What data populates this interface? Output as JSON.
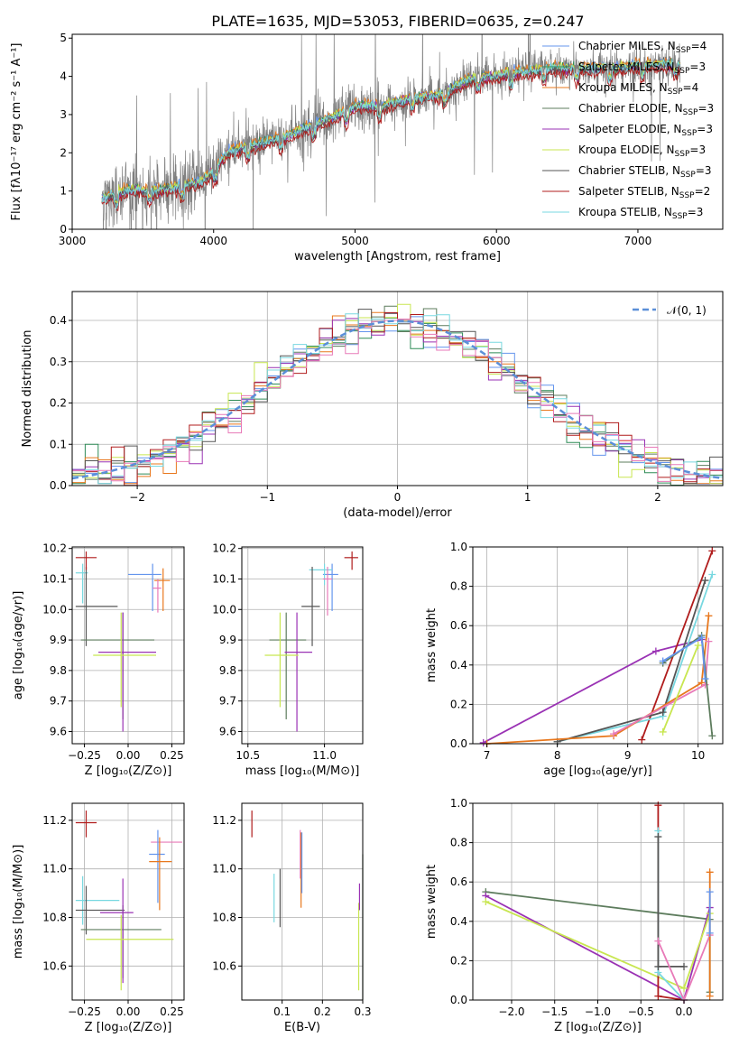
{
  "figure": {
    "title": "PLATE=1635, MJD=53053, FIBERID=0635, z=0.247"
  },
  "colors": {
    "chabrier_miles": "#6495ed",
    "salpeter_miles": "#2e8b57",
    "kroupa_miles": "#e8781e",
    "chabrier_elodie": "#5d7c5d",
    "salpeter_elodie": "#9a32b4",
    "kroupa_elodie": "#c8e650",
    "chabrier_stelib": "#555555",
    "salpeter_stelib": "#b01c1c",
    "kroupa_stelib": "#78d8e0",
    "pink": "#e87ab8",
    "data": "#7f7f7f",
    "normal": "#5b8fd8"
  },
  "chart_data": [
    {
      "id": "spectrum",
      "type": "line",
      "xlabel": "wavelength [Angstrom, rest frame]",
      "ylabel": "Flux [fλ10⁻¹⁷ erg cm⁻² s⁻¹ A⁻¹]",
      "xlim": [
        3000,
        7600
      ],
      "ylim": [
        0,
        5.1
      ],
      "xticks": [
        "3000",
        "4000",
        "5000",
        "6000",
        "7000"
      ],
      "yticks": [
        "0",
        "1",
        "2",
        "3",
        "4",
        "5"
      ],
      "grid": false,
      "legend_position": "top-right",
      "continuum": {
        "x": [
          3210,
          3400,
          3600,
          3750,
          3900,
          4000,
          4100,
          4300,
          4500,
          4700,
          4900,
          5000,
          5200,
          5400,
          5600,
          5800,
          6000,
          6200,
          6400,
          6600,
          6800,
          7000,
          7200,
          7300
        ],
        "y": [
          0.8,
          1.0,
          1.0,
          1.1,
          1.2,
          1.5,
          2.0,
          2.2,
          2.4,
          2.7,
          3.0,
          3.2,
          3.2,
          3.4,
          3.5,
          3.9,
          4.0,
          4.1,
          4.2,
          4.2,
          4.2,
          4.25,
          4.3,
          4.3
        ]
      },
      "series": [
        {
          "name": "Chabrier MILES, N$_{SSP}$=4",
          "color_key": "chabrier_miles",
          "offset": 0.06
        },
        {
          "name": "Salpeter MILES, N$_{SSP}$=3",
          "color_key": "salpeter_miles",
          "offset": 0.04
        },
        {
          "name": "Kroupa MILES, N$_{SSP}$=4",
          "color_key": "kroupa_miles",
          "offset": 0.08
        },
        {
          "name": "Chabrier ELODIE, N$_{SSP}$=3",
          "color_key": "chabrier_elodie",
          "offset": 0.02
        },
        {
          "name": "Salpeter ELODIE, N$_{SSP}$=3",
          "color_key": "salpeter_elodie",
          "offset": 0.0
        },
        {
          "name": "Kroupa ELODIE, N$_{SSP}$=3",
          "color_key": "kroupa_elodie",
          "offset": 0.05
        },
        {
          "name": "Chabrier STELIB, N$_{SSP}$=3",
          "color_key": "chabrier_stelib",
          "offset": -0.02
        },
        {
          "name": "Salpeter STELIB, N$_{SSP}$=2",
          "color_key": "salpeter_stelib",
          "offset": -0.12
        },
        {
          "name": "Kroupa STELIB, N$_{SSP}$=3",
          "color_key": "kroupa_stelib",
          "offset": 0.03
        }
      ]
    },
    {
      "id": "residuals",
      "type": "histogram",
      "xlabel": "(data-model)/error",
      "ylabel": "Normed distribution",
      "xlim": [
        -2.5,
        2.5
      ],
      "ylim": [
        0,
        0.47
      ],
      "xticks": [
        "−2",
        "−1",
        "0",
        "1",
        "2"
      ],
      "yticks": [
        "0.0",
        "0.1",
        "0.2",
        "0.3",
        "0.4"
      ],
      "grid": true,
      "legend_position": "top-right",
      "legend_label": "𝒩(0, 1)",
      "bin_width": 0.1
    },
    {
      "id": "age_vs_z",
      "type": "errorbar",
      "xlabel": "Z [log₁₀(Z/Z⊙)]",
      "ylabel": "age  [log₁₀(age/yr)]",
      "xlim": [
        -0.32,
        0.32
      ],
      "ylim": [
        9.56,
        10.205
      ],
      "xticks": [
        "−0.25",
        "0.00",
        "0.25"
      ],
      "yticks": [
        "9.6",
        "9.7",
        "9.8",
        "9.9",
        "10.0",
        "10.1",
        "10.2"
      ],
      "grid": true,
      "points": [
        {
          "x": 0.14,
          "xerr": [
            0.14,
            0.05
          ],
          "y": 10.115,
          "yerr": [
            0.12,
            0.035
          ],
          "color_key": "chabrier_miles"
        },
        {
          "x": 0.2,
          "xerr": [
            0.05,
            0.04
          ],
          "y": 10.095,
          "yerr": [
            0.1,
            0.04
          ],
          "color_key": "kroupa_miles"
        },
        {
          "x": 0.17,
          "xerr": [
            0.03,
            0.02
          ],
          "y": 10.07,
          "yerr": [
            0.08,
            0.03
          ],
          "color_key": "pink"
        },
        {
          "x": -0.26,
          "xerr": [
            0.04,
            0.03
          ],
          "y": 10.12,
          "yerr": [
            0.1,
            0.03
          ],
          "color_key": "kroupa_stelib"
        },
        {
          "x": -0.24,
          "xerr": [
            0.06,
            0.18
          ],
          "y": 10.01,
          "yerr": [
            0.13,
            0.13
          ],
          "color_key": "chabrier_stelib"
        },
        {
          "x": -0.24,
          "xerr": [
            0.06,
            0.06
          ],
          "y": 10.17,
          "yerr": [
            0.04,
            0.02
          ],
          "color_key": "salpeter_stelib"
        },
        {
          "x": -0.03,
          "xerr": [
            0.24,
            0.18
          ],
          "y": 9.9,
          "yerr": [
            0.26,
            0.09
          ],
          "color_key": "chabrier_elodie"
        },
        {
          "x": -0.03,
          "xerr": [
            0.14,
            0.19
          ],
          "y": 9.86,
          "yerr": [
            0.26,
            0.13
          ],
          "color_key": "salpeter_elodie"
        },
        {
          "x": -0.04,
          "xerr": [
            0.16,
            0.2
          ],
          "y": 9.85,
          "yerr": [
            0.17,
            0.14
          ],
          "color_key": "kroupa_elodie"
        }
      ]
    },
    {
      "id": "age_vs_mass",
      "type": "errorbar",
      "xlabel": "mass [log₁₀(M/M⊙)]",
      "ylabel": "",
      "xlim": [
        10.46,
        11.25
      ],
      "ylim": [
        9.56,
        10.205
      ],
      "xticks": [
        "10.5",
        "11.0"
      ],
      "yticks": [
        "9.6",
        "9.7",
        "9.8",
        "9.9",
        "10.0",
        "10.1",
        "10.2"
      ],
      "grid": true,
      "points": [
        {
          "x": 11.05,
          "xerr": [
            0.06,
            0.04
          ],
          "y": 10.115,
          "yerr": [
            0.12,
            0.035
          ],
          "color_key": "chabrier_miles"
        },
        {
          "x": 11.0,
          "xerr": [
            0.1,
            0.05
          ],
          "y": 10.13,
          "yerr": [
            0.05,
            0.02
          ],
          "color_key": "kroupa_stelib"
        },
        {
          "x": 10.92,
          "xerr": [
            0.07,
            0.05
          ],
          "y": 10.01,
          "yerr": [
            0.13,
            0.13
          ],
          "color_key": "chabrier_stelib"
        },
        {
          "x": 11.18,
          "xerr": [
            0.05,
            0.04
          ],
          "y": 10.17,
          "yerr": [
            0.04,
            0.02
          ],
          "color_key": "salpeter_stelib"
        },
        {
          "x": 11.02,
          "xerr": [
            0.03,
            0.03
          ],
          "y": 10.1,
          "yerr": [
            0.12,
            0.04
          ],
          "color_key": "pink"
        },
        {
          "x": 10.75,
          "xerr": [
            0.11,
            0.13
          ],
          "y": 9.9,
          "yerr": [
            0.26,
            0.09
          ],
          "color_key": "chabrier_elodie"
        },
        {
          "x": 10.82,
          "xerr": [
            0.08,
            0.1
          ],
          "y": 9.86,
          "yerr": [
            0.26,
            0.13
          ],
          "color_key": "salpeter_elodie"
        },
        {
          "x": 10.71,
          "xerr": [
            0.1,
            0.12
          ],
          "y": 9.85,
          "yerr": [
            0.17,
            0.14
          ],
          "color_key": "kroupa_elodie"
        }
      ]
    },
    {
      "id": "weight_vs_age",
      "type": "line",
      "xlabel": "age  [log₁₀(age/yr)]",
      "ylabel": "mass weight",
      "xlim": [
        6.8,
        10.35
      ],
      "ylim": [
        0,
        1.0
      ],
      "xticks": [
        "7",
        "8",
        "9",
        "10"
      ],
      "yticks": [
        "0.0",
        "0.2",
        "0.4",
        "0.6",
        "0.8",
        "1.0"
      ],
      "grid": true,
      "series": [
        {
          "color_key": "salpeter_elodie",
          "x": [
            6.95,
            9.4,
            10.05
          ],
          "y": [
            0.005,
            0.47,
            0.53
          ]
        },
        {
          "color_key": "salpeter_stelib",
          "x": [
            9.2,
            10.2
          ],
          "y": [
            0.02,
            0.98
          ]
        },
        {
          "color_key": "kroupa_stelib",
          "x": [
            8.0,
            9.5,
            10.2
          ],
          "y": [
            0.01,
            0.14,
            0.86
          ]
        },
        {
          "color_key": "chabrier_stelib",
          "x": [
            8.0,
            9.5,
            10.1
          ],
          "y": [
            0.01,
            0.16,
            0.83
          ]
        },
        {
          "color_key": "kroupa_miles",
          "x": [
            7.0,
            8.8,
            10.05,
            10.15
          ],
          "y": [
            0.0,
            0.04,
            0.31,
            0.65
          ]
        },
        {
          "color_key": "pink",
          "x": [
            8.8,
            10.1,
            10.15
          ],
          "y": [
            0.05,
            0.3,
            0.52
          ]
        },
        {
          "color_key": "kroupa_elodie",
          "x": [
            9.5,
            10.0
          ],
          "y": [
            0.06,
            0.5
          ]
        },
        {
          "color_key": "chabrier_elodie",
          "x": [
            9.5,
            10.05,
            10.2
          ],
          "y": [
            0.41,
            0.55,
            0.04
          ]
        },
        {
          "color_key": "chabrier_miles",
          "x": [
            9.5,
            10.05,
            10.1
          ],
          "y": [
            0.42,
            0.54,
            0.33
          ]
        }
      ]
    },
    {
      "id": "mass_vs_z",
      "type": "errorbar",
      "xlabel": "Z [log₁₀(Z/Z⊙)]",
      "ylabel": "mass [log₁₀(M/M⊙)]",
      "xlim": [
        -0.32,
        0.32
      ],
      "ylim": [
        10.46,
        11.27
      ],
      "xticks": [
        "−0.25",
        "0.00",
        "0.25"
      ],
      "yticks": [
        "10.6",
        "10.8",
        "11.0",
        "11.2"
      ],
      "grid": true,
      "points": [
        {
          "x": 0.17,
          "xerr": [
            0.04,
            0.14
          ],
          "y": 11.11,
          "yerr": [
            0.0,
            0.0
          ],
          "color_key": "pink"
        },
        {
          "x": -0.24,
          "xerr": [
            0.06,
            0.06
          ],
          "y": 11.19,
          "yerr": [
            0.06,
            0.05
          ],
          "color_key": "salpeter_stelib"
        },
        {
          "x": 0.17,
          "xerr": [
            0.05,
            0.04
          ],
          "y": 11.06,
          "yerr": [
            0.2,
            0.1
          ],
          "color_key": "chabrier_miles"
        },
        {
          "x": 0.18,
          "xerr": [
            0.06,
            0.07
          ],
          "y": 11.03,
          "yerr": [
            0.2,
            0.1
          ],
          "color_key": "kroupa_miles"
        },
        {
          "x": -0.26,
          "xerr": [
            0.04,
            0.21
          ],
          "y": 10.87,
          "yerr": [
            0.1,
            0.1
          ],
          "color_key": "kroupa_stelib"
        },
        {
          "x": -0.24,
          "xerr": [
            0.06,
            0.22
          ],
          "y": 10.83,
          "yerr": [
            0.1,
            0.1
          ],
          "color_key": "chabrier_stelib"
        },
        {
          "x": -0.03,
          "xerr": [
            0.24,
            0.22
          ],
          "y": 10.75,
          "yerr": [
            0.2,
            0.1
          ],
          "color_key": "chabrier_elodie"
        },
        {
          "x": -0.03,
          "xerr": [
            0.13,
            0.06
          ],
          "y": 10.82,
          "yerr": [
            0.29,
            0.14
          ],
          "color_key": "salpeter_elodie"
        },
        {
          "x": -0.04,
          "xerr": [
            0.2,
            0.3
          ],
          "y": 10.71,
          "yerr": [
            0.21,
            0.1
          ],
          "color_key": "kroupa_elodie"
        }
      ]
    },
    {
      "id": "mass_vs_ebv",
      "type": "errorbar",
      "xlabel": "E(B-V)",
      "ylabel": "",
      "xlim": [
        0.0,
        0.3
      ],
      "ylim": [
        10.46,
        11.27
      ],
      "xticks": [
        "0.1",
        "0.2",
        "0.3"
      ],
      "yticks": [
        "10.6",
        "10.8",
        "11.0",
        "11.2"
      ],
      "grid": true,
      "points": [
        {
          "x": 0.025,
          "xerr": [
            0,
            0
          ],
          "y": 11.19,
          "yerr": [
            0.06,
            0.05
          ],
          "color_key": "salpeter_stelib"
        },
        {
          "x": 0.08,
          "xerr": [
            0,
            0
          ],
          "y": 10.88,
          "yerr": [
            0.1,
            0.1
          ],
          "color_key": "kroupa_stelib"
        },
        {
          "x": 0.095,
          "xerr": [
            0,
            0
          ],
          "y": 10.88,
          "yerr": [
            0.12,
            0.12
          ],
          "color_key": "chabrier_stelib"
        },
        {
          "x": 0.145,
          "xerr": [
            0,
            0
          ],
          "y": 11.06,
          "yerr": [
            0.1,
            0.1
          ],
          "color_key": "pink"
        },
        {
          "x": 0.147,
          "xerr": [
            0,
            0
          ],
          "y": 11.0,
          "yerr": [
            0.16,
            0.15
          ],
          "color_key": "kroupa_miles"
        },
        {
          "x": 0.149,
          "xerr": [
            0,
            0
          ],
          "y": 11.0,
          "yerr": [
            0.1,
            0.15
          ],
          "color_key": "chabrier_miles"
        },
        {
          "x": 0.29,
          "xerr": [
            0,
            0
          ],
          "y": 10.68,
          "yerr": [
            0.18,
            0.18
          ],
          "color_key": "kroupa_elodie"
        },
        {
          "x": 0.292,
          "xerr": [
            0,
            0
          ],
          "y": 10.88,
          "yerr": [
            0.05,
            0.06
          ],
          "color_key": "salpeter_elodie"
        },
        {
          "x": 0.3,
          "xerr": [
            0,
            0
          ],
          "y": 10.76,
          "yerr": [
            0.3,
            0.3
          ],
          "color_key": "chabrier_elodie"
        }
      ]
    },
    {
      "id": "weight_vs_z",
      "type": "line",
      "xlabel": "Z [log₁₀(Z/Z⊙)]",
      "ylabel": "mass weight",
      "xlim": [
        -2.45,
        0.45
      ],
      "ylim": [
        0,
        1.0
      ],
      "xticks": [
        "−2.0",
        "−1.5",
        "−1.0",
        "−0.5",
        "0.0"
      ],
      "yticks": [
        "0.0",
        "0.2",
        "0.4",
        "0.6",
        "0.8",
        "1.0"
      ],
      "grid": true,
      "series": [
        {
          "color_key": "chabrier_elodie",
          "x": [
            -2.3,
            0.3,
            0.3
          ],
          "y": [
            0.55,
            0.41,
            0.04
          ]
        },
        {
          "color_key": "salpeter_elodie",
          "x": [
            -2.3,
            0.0,
            0.3
          ],
          "y": [
            0.53,
            0.0,
            0.47
          ]
        },
        {
          "color_key": "kroupa_elodie",
          "x": [
            -2.3,
            0.0,
            0.3
          ],
          "y": [
            0.5,
            0.06,
            0.44
          ]
        },
        {
          "color_key": "salpeter_stelib",
          "x": [
            -0.3,
            -0.3,
            0.0
          ],
          "y": [
            0.99,
            0.02,
            0.0
          ]
        },
        {
          "color_key": "kroupa_stelib",
          "x": [
            -0.3,
            -0.3,
            0.0
          ],
          "y": [
            0.86,
            0.14,
            0.0
          ]
        },
        {
          "color_key": "chabrier_stelib",
          "x": [
            -0.3,
            -0.3,
            0.0
          ],
          "y": [
            0.83,
            0.17,
            0.17
          ]
        },
        {
          "color_key": "pink",
          "x": [
            -0.3,
            0.0,
            0.3
          ],
          "y": [
            0.3,
            0.0,
            0.33
          ]
        },
        {
          "color_key": "kroupa_miles",
          "x": [
            0.3,
            0.3
          ],
          "y": [
            0.65,
            0.02
          ]
        },
        {
          "color_key": "chabrier_miles",
          "x": [
            0.3,
            0.3
          ],
          "y": [
            0.55,
            0.34
          ]
        }
      ]
    }
  ]
}
